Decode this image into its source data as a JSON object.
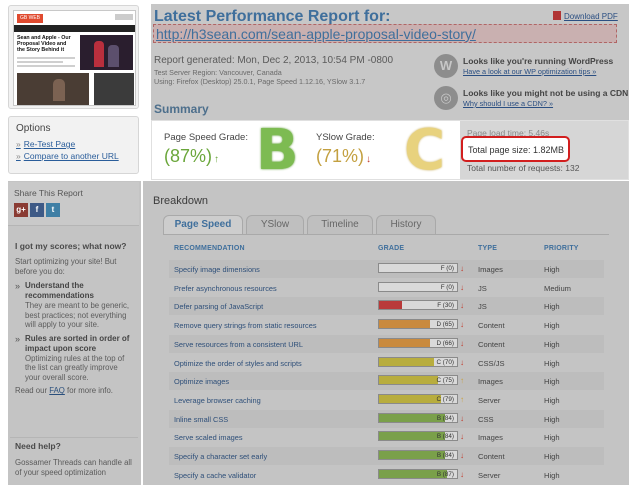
{
  "thumbnail": {
    "logo": "GB WEB TECH",
    "headline": "Sean and Apple - Our Proposal Video and the Story Behind it"
  },
  "options": {
    "title": "Options",
    "links": [
      "Re-Test Page",
      "Compare to another URL"
    ]
  },
  "share": {
    "title": "Share This Report",
    "icons": [
      "google-plus-icon",
      "facebook-icon",
      "twitter-icon"
    ]
  },
  "scores_help": {
    "title": "I got my scores; what now?",
    "intro": "Start optimizing your site! But before you do:",
    "items": [
      {
        "title": "Understand the recommendations",
        "text": "They are meant to be generic, best practices; not everything will apply to your site."
      },
      {
        "title": "Rules are sorted in order of impact upon score",
        "text": "Optimizing rules at the top of the list can greatly improve your overall score."
      }
    ],
    "read_prefix": "Read our ",
    "faq_link": "FAQ",
    "read_suffix": " for more info."
  },
  "need_help": {
    "title": "Need help?",
    "text": "Gossamer Threads can handle all of your speed optimization"
  },
  "report": {
    "title": "Latest Performance Report for:",
    "url": "http://h3sean.com/sean-apple-proposal-video-story/",
    "download_pdf": "Download PDF",
    "generated": "Report generated: Mon, Dec 2, 2013, 10:54 PM -0800",
    "server_region": "Test Server Region: Vancouver, Canada",
    "using": "Using: Firefox (Desktop) 25.0.1, Page Speed 1.12.16, YSlow 3.1.7"
  },
  "promos": [
    {
      "icon": "wordpress-icon",
      "title": "Looks like you're running WordPress",
      "link": "Have a look at our WP optimization tips »"
    },
    {
      "icon": "globe-icon",
      "title": "Looks like you might not be using a CDN",
      "link": "Why should I use a CDN? »"
    }
  ],
  "summary": {
    "heading": "Summary",
    "pagespeed_label": "Page Speed Grade:",
    "pagespeed_score": "(87%)",
    "pagespeed_trend": "↑",
    "pagespeed_letter": "B",
    "yslow_label": "YSlow Grade:",
    "yslow_score": "(71%)",
    "yslow_trend": "↓",
    "yslow_letter": "C",
    "load_time": "Page load time: 5.46s",
    "page_size": "Total page size: 1.82MB",
    "requests": "Total number of requests: 132"
  },
  "breakdown": {
    "title": "Breakdown",
    "tabs": [
      "Page Speed",
      "YSlow",
      "Timeline",
      "History"
    ],
    "active_tab": "Page Speed",
    "headers": {
      "recommendation": "RECOMMENDATION",
      "grade": "GRADE",
      "type": "TYPE",
      "priority": "PRIORITY"
    },
    "rows": [
      {
        "recommendation": "Specify image dimensions",
        "grade_label": "F (0)",
        "grade_value": 0,
        "trend": "↓",
        "type": "Images",
        "priority": "High"
      },
      {
        "recommendation": "Prefer asynchronous resources",
        "grade_label": "F (0)",
        "grade_value": 0,
        "trend": "↓",
        "type": "JS",
        "priority": "Medium"
      },
      {
        "recommendation": "Defer parsing of JavaScript",
        "grade_label": "F (30)",
        "grade_value": 30,
        "trend": "↓",
        "type": "JS",
        "priority": "High"
      },
      {
        "recommendation": "Remove query strings from static resources",
        "grade_label": "D (65)",
        "grade_value": 65,
        "trend": "↓",
        "type": "Content",
        "priority": "High"
      },
      {
        "recommendation": "Serve resources from a consistent URL",
        "grade_label": "D (66)",
        "grade_value": 66,
        "trend": "↓",
        "type": "Content",
        "priority": "High"
      },
      {
        "recommendation": "Optimize the order of styles and scripts",
        "grade_label": "C (70)",
        "grade_value": 70,
        "trend": "↓",
        "type": "CSS/JS",
        "priority": "High"
      },
      {
        "recommendation": "Optimize images",
        "grade_label": "C (75)",
        "grade_value": 75,
        "trend": "↑",
        "type": "Images",
        "priority": "High"
      },
      {
        "recommendation": "Leverage browser caching",
        "grade_label": "C (79)",
        "grade_value": 79,
        "trend": "↑",
        "type": "Server",
        "priority": "High"
      },
      {
        "recommendation": "Inline small CSS",
        "grade_label": "B (84)",
        "grade_value": 84,
        "trend": "↓",
        "type": "CSS",
        "priority": "High"
      },
      {
        "recommendation": "Serve scaled images",
        "grade_label": "B (84)",
        "grade_value": 84,
        "trend": "↓",
        "type": "Images",
        "priority": "High"
      },
      {
        "recommendation": "Specify a character set early",
        "grade_label": "B (84)",
        "grade_value": 84,
        "trend": "↓",
        "type": "Content",
        "priority": "High"
      },
      {
        "recommendation": "Specify a cache validator",
        "grade_label": "B (87)",
        "grade_value": 87,
        "trend": "↓",
        "type": "Server",
        "priority": "High"
      }
    ]
  },
  "colors": {
    "grade_f": "#b93a3a",
    "grade_d": "#c98a3e",
    "grade_c": "#b8ad3e",
    "grade_b": "#7aa04a",
    "trend_down": "#c0392b",
    "trend_up": "#c9a040",
    "highlight_border": "#d21e1e"
  }
}
